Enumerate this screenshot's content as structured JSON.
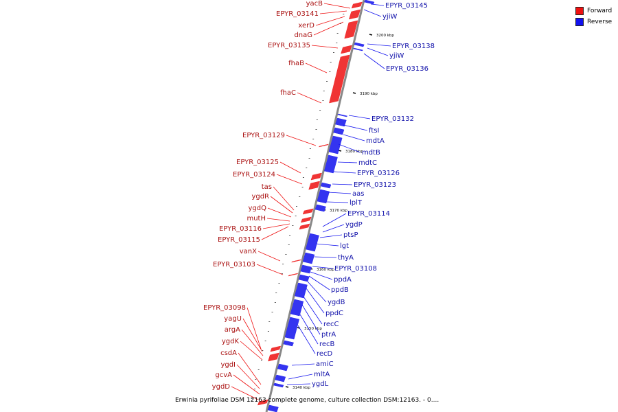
{
  "colors": {
    "forward": "#ee1111",
    "reverse": "#1111ee",
    "axis": "#888888"
  },
  "legend": [
    {
      "label": "Forward",
      "color": "#ee1111"
    },
    {
      "label": "Reverse",
      "color": "#1111ee"
    }
  ],
  "caption": "Erwinia pyrifoliae DSM 12163 complete genome, culture collection DSM:12163. - 0....",
  "ticks": [
    "3200 kbp",
    "3190 kbp",
    "3180 kbp",
    "3170 kbp",
    "3160 kbp",
    "3150 kbp",
    "3140 kbp"
  ],
  "forward_labels": [
    "yacB",
    "EPYR_03141",
    "xerD",
    "dnaG",
    "EPYR_03135",
    "fhaB",
    "fhaC",
    "EPYR_03129",
    "EPYR_03125",
    "EPYR_03124",
    "tas",
    "ygdR",
    "ygdQ",
    "mutH",
    "EPYR_03116",
    "EPYR_03115",
    "vanX",
    "EPYR_03103",
    "EPYR_03098",
    "yagU",
    "argA",
    "ygdK",
    "csdA",
    "ygdI",
    "gcvA",
    "ygdD"
  ],
  "reverse_labels": [
    "EPYR_03145",
    "yjiW",
    "EPYR_03138",
    "yjiW",
    "EPYR_03136",
    "EPYR_03132",
    "ftsI",
    "mdtA",
    "mdtB",
    "mdtC",
    "EPYR_03126",
    "EPYR_03123",
    "aas",
    "lplT",
    "EPYR_03114",
    "ygdP",
    "ptsP",
    "lgt",
    "thyA",
    "EPYR_03108",
    "ppdA",
    "ppdB",
    "ygdB",
    "ppdC",
    "recC",
    "ptrA",
    "recB",
    "recD",
    "amiC",
    "mltA",
    "ygdL"
  ]
}
